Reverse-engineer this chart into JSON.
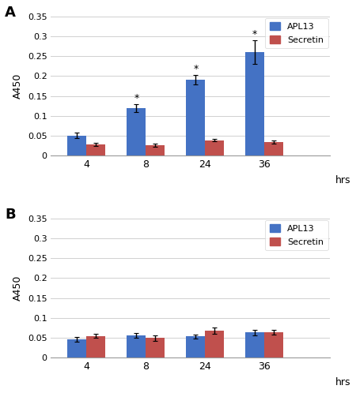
{
  "panel_A": {
    "categories": [
      "4",
      "8",
      "24",
      "36"
    ],
    "apl13_values": [
      0.05,
      0.119,
      0.19,
      0.26
    ],
    "secretin_values": [
      0.028,
      0.027,
      0.038,
      0.034
    ],
    "apl13_errors": [
      0.007,
      0.01,
      0.012,
      0.03
    ],
    "secretin_errors": [
      0.004,
      0.004,
      0.003,
      0.003
    ],
    "star_indices": [
      1,
      2,
      3
    ],
    "ylabel": "A450",
    "ylim": [
      0,
      0.35
    ],
    "yticks": [
      0,
      0.05,
      0.1,
      0.15,
      0.2,
      0.25,
      0.3,
      0.35
    ],
    "panel_label": "A"
  },
  "panel_B": {
    "categories": [
      "4",
      "8",
      "24",
      "36"
    ],
    "apl13_values": [
      0.046,
      0.056,
      0.053,
      0.063
    ],
    "secretin_values": [
      0.054,
      0.049,
      0.068,
      0.063
    ],
    "apl13_errors": [
      0.006,
      0.006,
      0.005,
      0.007
    ],
    "secretin_errors": [
      0.005,
      0.007,
      0.008,
      0.006
    ],
    "star_indices": [],
    "ylabel": "A450",
    "ylim": [
      0,
      0.35
    ],
    "yticks": [
      0,
      0.05,
      0.1,
      0.15,
      0.2,
      0.25,
      0.3,
      0.35
    ],
    "panel_label": "B"
  },
  "xlabel_suffix": "hrs",
  "apl13_color": "#4472C4",
  "secretin_color": "#C0504D",
  "bar_width": 0.32,
  "legend_labels": [
    "APL13",
    "Secretin"
  ],
  "background_color": "#FFFFFF",
  "grid_color": "#D0D0D0"
}
